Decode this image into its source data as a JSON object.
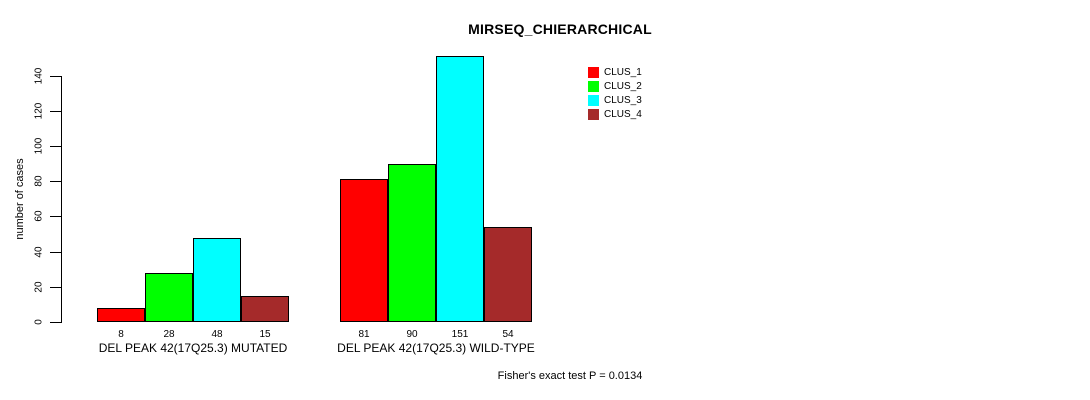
{
  "chart_data": {
    "type": "bar",
    "title": "MIRSEQ_CHIERARCHICAL",
    "ylabel": "number of cases",
    "xlabel": "",
    "ylim": [
      0,
      140
    ],
    "yticks": [
      0,
      20,
      40,
      60,
      80,
      100,
      120,
      140
    ],
    "grid": false,
    "legend_position": "top-right",
    "bar_border_color": "#000000",
    "categories": [
      "DEL PEAK 42(17Q25.3) MUTATED",
      "DEL PEAK 42(17Q25.3) WILD-TYPE"
    ],
    "series": [
      {
        "name": "CLUS_1",
        "color": "#FF0000",
        "values": [
          8,
          81
        ]
      },
      {
        "name": "CLUS_2",
        "color": "#00FF00",
        "values": [
          28,
          90
        ]
      },
      {
        "name": "CLUS_3",
        "color": "#00FFFF",
        "values": [
          48,
          151
        ]
      },
      {
        "name": "CLUS_4",
        "color": "#A52A2A",
        "values": [
          15,
          54
        ]
      }
    ],
    "annotation": "Fisher's exact test P = 0.0134"
  }
}
